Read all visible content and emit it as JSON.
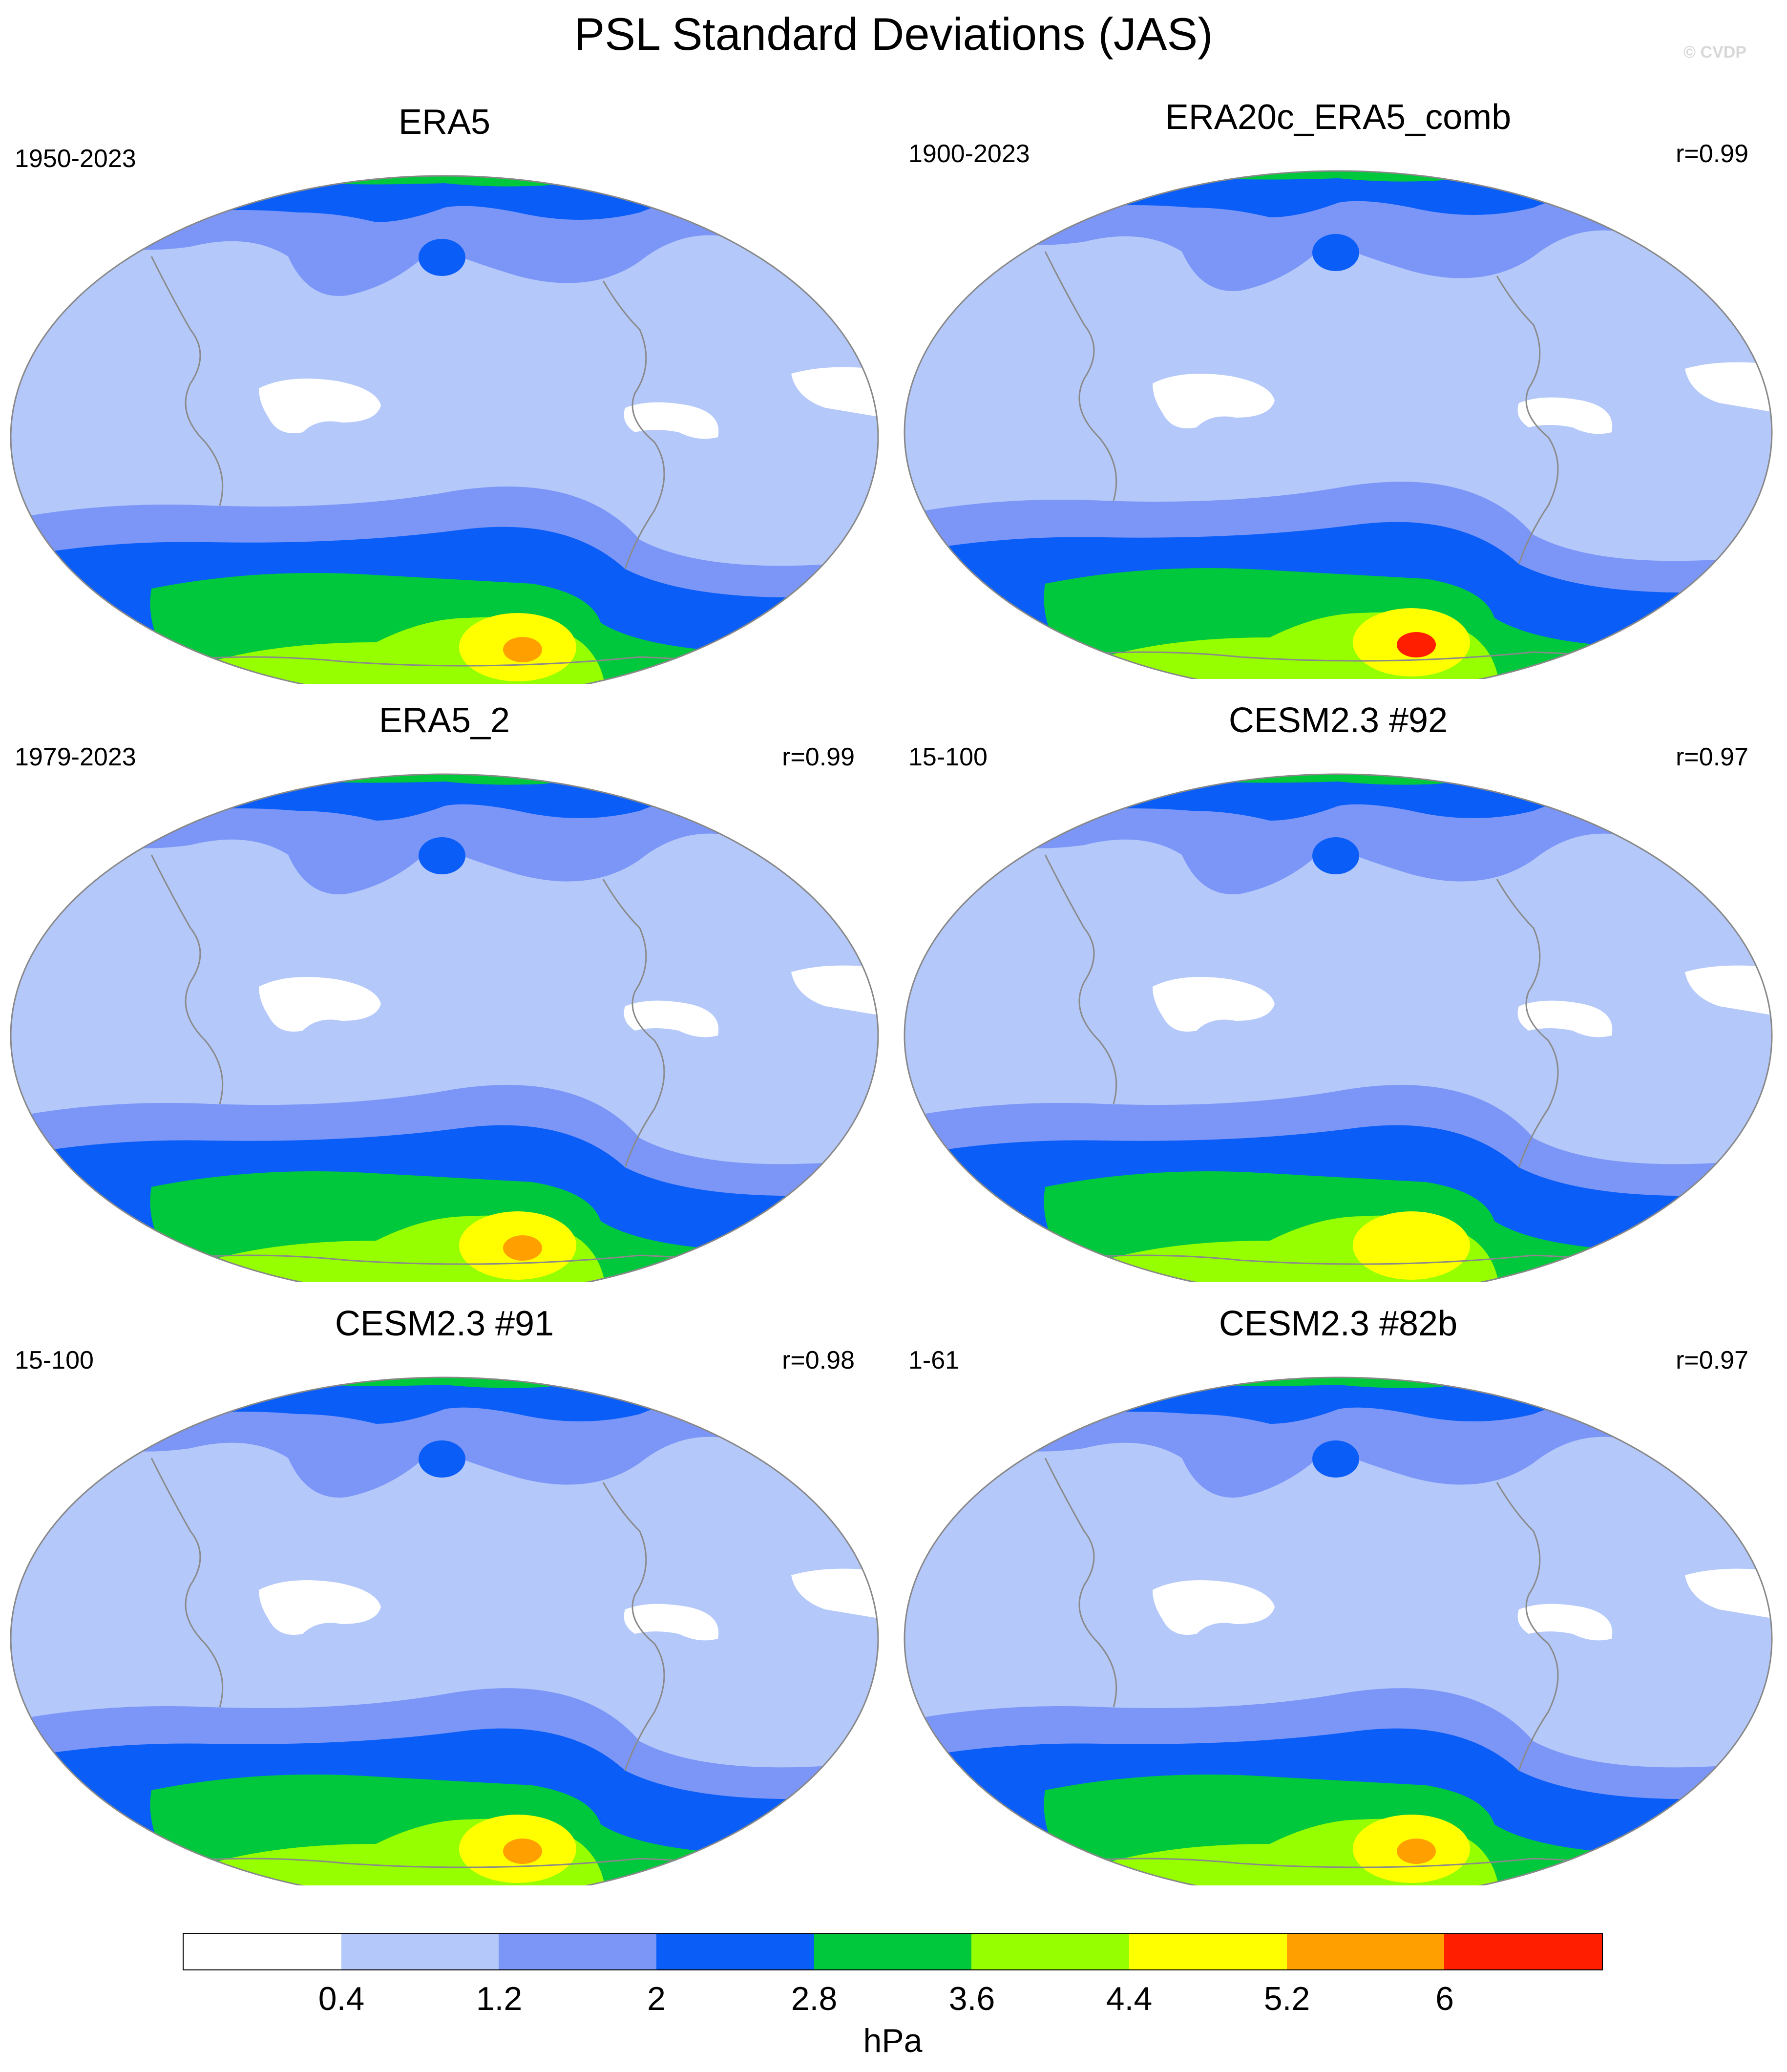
{
  "figure": {
    "title": "PSL Standard Deviations (JAS)",
    "watermark": "© CVDP"
  },
  "colorbar": {
    "colors": [
      "#ffffff",
      "#b4c8fa",
      "#7c96f7",
      "#0a5ef7",
      "#00c83c",
      "#96ff00",
      "#ffff00",
      "#ffa000",
      "#ff1e00"
    ],
    "ticks": [
      "0.4",
      "1.2",
      "2",
      "2.8",
      "3.6",
      "4.4",
      "5.2",
      "6"
    ],
    "units": "hPa"
  },
  "panels": [
    {
      "title": "ERA5",
      "period": "1950-2023",
      "corr": ""
    },
    {
      "title": "ERA20c_ERA5_comb",
      "period": "1900-2023",
      "corr": "r=0.99"
    },
    {
      "title": "ERA5_2",
      "period": "1979-2023",
      "corr": "r=0.99"
    },
    {
      "title": "CESM2.3 #92",
      "period": "15-100",
      "corr": "r=0.97"
    },
    {
      "title": "CESM2.3 #91",
      "period": "15-100",
      "corr": "r=0.98"
    },
    {
      "title": "CESM2.3 #82b",
      "period": "1-61",
      "corr": "r=0.97"
    }
  ],
  "map_content": {
    "projection": "global ellipse (Pacific-centered)",
    "field": "PSL standard deviation",
    "pattern_by_panel": [
      {
        "arctic_max_class": "2.8-3.6",
        "southern_ocean_max_class": "5.2-6",
        "tropical_minimum": "below 0.4"
      },
      {
        "arctic_max_class": "2.8-3.6",
        "southern_ocean_max_class": "above 6",
        "tropical_minimum": "below 0.4"
      },
      {
        "arctic_max_class": "2.8-3.6",
        "southern_ocean_max_class": "5.2-6",
        "tropical_minimum": "below 0.4"
      },
      {
        "arctic_max_class": "2.8-3.6",
        "southern_ocean_max_class": "4.4-5.2",
        "tropical_minimum": "below 0.4"
      },
      {
        "arctic_max_class": "2.8-3.6",
        "southern_ocean_max_class": "5.2-6",
        "tropical_minimum": "below 0.4"
      },
      {
        "arctic_max_class": "2.8-3.6",
        "southern_ocean_max_class": "5.2-6",
        "tropical_minimum": "below 0.4"
      }
    ]
  }
}
